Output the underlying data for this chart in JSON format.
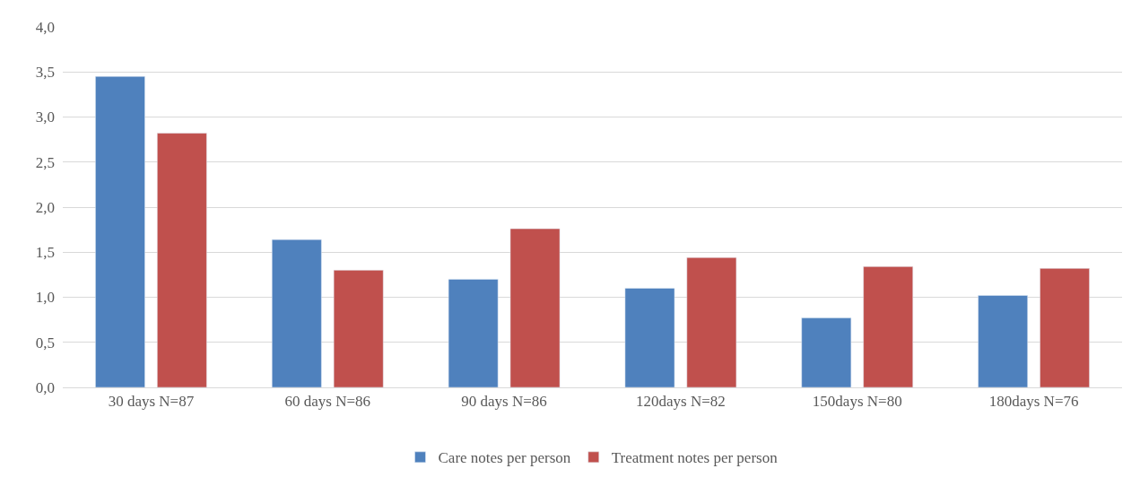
{
  "chart_data": {
    "type": "bar",
    "categories": [
      "30 days N=87",
      "60 days N=86",
      "90 days N=86",
      "120days N=82",
      "150days N=80",
      "180days N=76"
    ],
    "series": [
      {
        "name": "Care notes per person",
        "color": "#4f81bd",
        "values": [
          3.45,
          1.64,
          1.2,
          1.1,
          0.77,
          1.02
        ]
      },
      {
        "name": "Treatment notes per person",
        "color": "#c0504d",
        "values": [
          2.82,
          1.3,
          1.76,
          1.44,
          1.34,
          1.32
        ]
      }
    ],
    "ylim": [
      0,
      4
    ],
    "yticks": [
      {
        "value": 0,
        "label": "0,0"
      },
      {
        "value": 0.5,
        "label": "0,5"
      },
      {
        "value": 1,
        "label": "1,0"
      },
      {
        "value": 1.5,
        "label": "1,5"
      },
      {
        "value": 2,
        "label": "2,0"
      },
      {
        "value": 2.5,
        "label": "2,5"
      },
      {
        "value": 3,
        "label": "3,0"
      },
      {
        "value": 3.5,
        "label": "3,5"
      },
      {
        "value": 4,
        "label": "4,0"
      }
    ],
    "grid": "y",
    "legend": "bottom"
  }
}
